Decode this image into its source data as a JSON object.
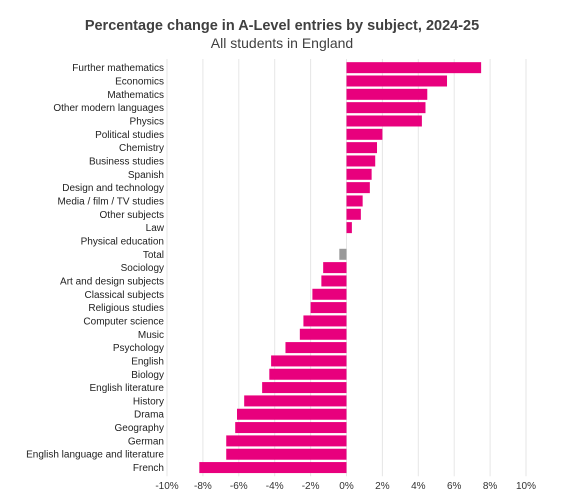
{
  "chart_data": {
    "type": "bar",
    "orientation": "horizontal",
    "title": "Percentage change in A-Level entries by subject, 2024-25",
    "subtitle": "All students in England",
    "categories": [
      "Further mathematics",
      "Economics",
      "Mathematics",
      "Other modern languages",
      "Physics",
      "Political studies",
      "Chemistry",
      "Business studies",
      "Spanish",
      "Design and technology",
      "Media / film / TV studies",
      "Other subjects",
      "Law",
      "Physical education",
      "Total",
      "Sociology",
      "Art and design subjects",
      "Classical subjects",
      "Religious studies",
      "Computer science",
      "Music",
      "Psychology",
      "English",
      "Biology",
      "English literature",
      "History",
      "Drama",
      "Geography",
      "German",
      "English language and literature",
      "French"
    ],
    "values": [
      7.5,
      5.6,
      4.5,
      4.4,
      4.2,
      2.0,
      1.7,
      1.6,
      1.4,
      1.3,
      0.9,
      0.8,
      0.3,
      0.0,
      -0.4,
      -1.3,
      -1.4,
      -1.9,
      -2.0,
      -2.4,
      -2.6,
      -3.4,
      -4.2,
      -4.3,
      -4.7,
      -5.7,
      -6.1,
      -6.2,
      -6.7,
      -6.7,
      -8.2
    ],
    "highlight": {
      "category": "Total",
      "color": "#999999"
    },
    "colors": {
      "bar": "#e8007d",
      "highlight": "#999999",
      "grid": "#e6e6e6"
    },
    "xlim": [
      -10,
      10
    ],
    "xticks": [
      "-10%",
      "-8%",
      "-6%",
      "-4%",
      "-2%",
      "0%",
      "2%",
      "4%",
      "6%",
      "8%",
      "10%"
    ],
    "xlabel": "",
    "ylabel": "",
    "grid": true,
    "legend": "none"
  }
}
